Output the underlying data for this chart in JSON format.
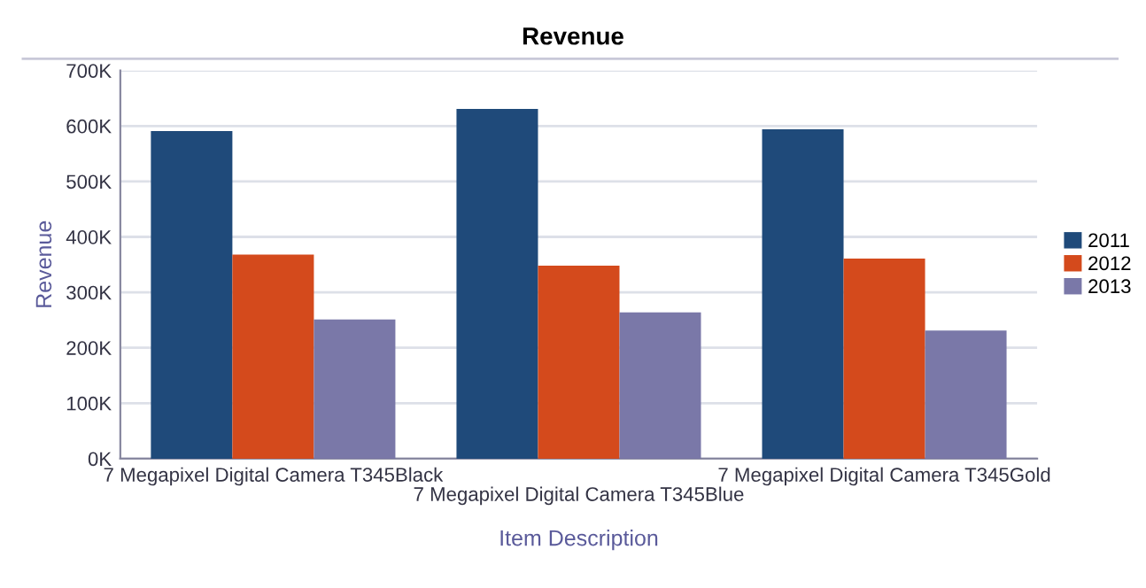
{
  "chart_data": {
    "type": "bar",
    "title": "Revenue",
    "xlabel": "Item Description",
    "ylabel": "Revenue",
    "categories": [
      "7 Megapixel Digital Camera T345Black",
      "7 Megapixel Digital Camera T345Blue",
      "7 Megapixel Digital Camera T345Gold"
    ],
    "series": [
      {
        "name": "2011",
        "color": "#1f4a7a",
        "values": [
          591000,
          631000,
          594000
        ]
      },
      {
        "name": "2012",
        "color": "#d44a1c",
        "values": [
          368000,
          348000,
          361000
        ]
      },
      {
        "name": "2013",
        "color": "#7a78a8",
        "values": [
          251000,
          264000,
          231000
        ]
      }
    ],
    "ylim": [
      0,
      700000
    ],
    "yticks": [
      {
        "value": 0,
        "label": "0K"
      },
      {
        "value": 100000,
        "label": "100K"
      },
      {
        "value": 200000,
        "label": "200K"
      },
      {
        "value": 300000,
        "label": "300K"
      },
      {
        "value": 400000,
        "label": "400K"
      },
      {
        "value": 500000,
        "label": "500K"
      },
      {
        "value": 600000,
        "label": "600K"
      },
      {
        "value": 700000,
        "label": "700K"
      }
    ],
    "grid": "y",
    "legend": "right"
  }
}
